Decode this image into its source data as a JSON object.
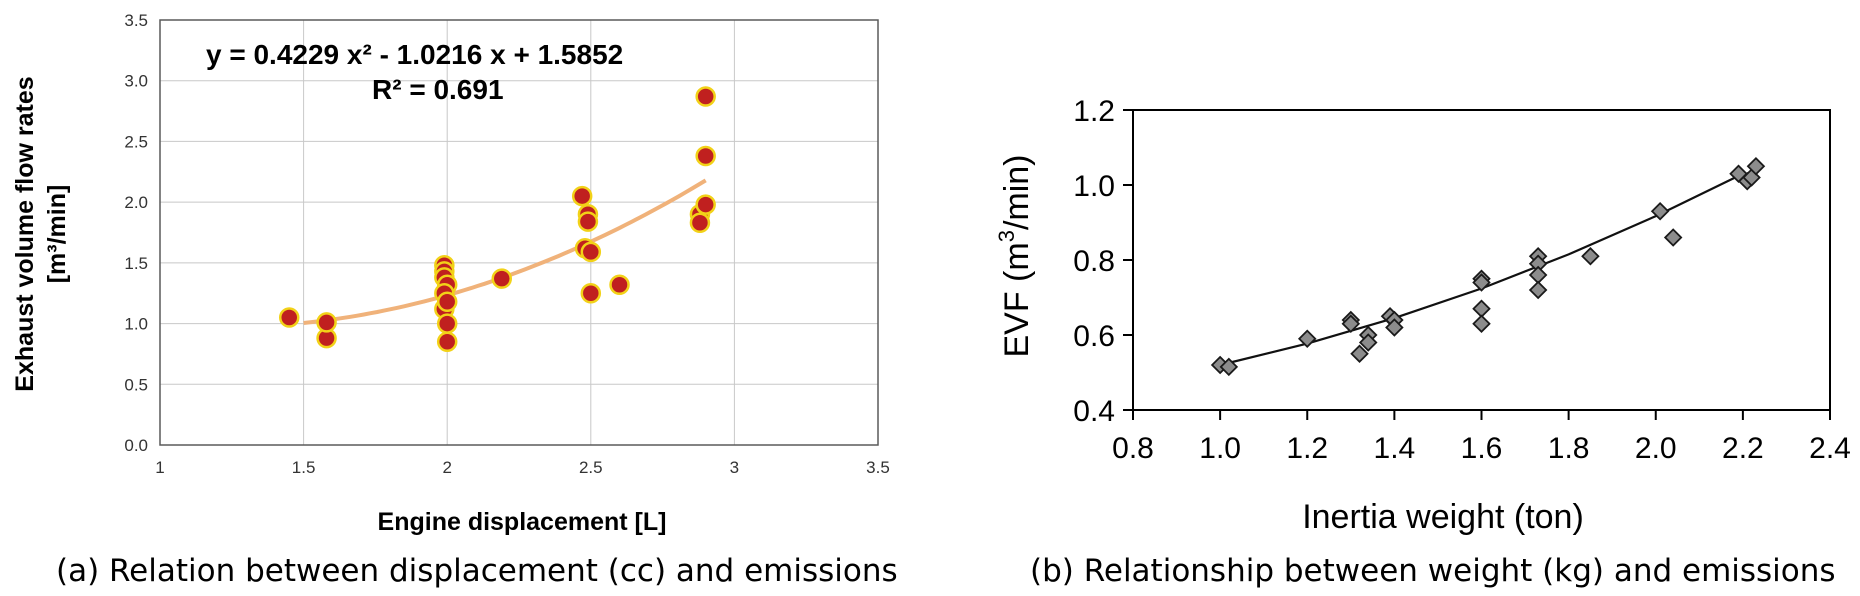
{
  "captions": {
    "a": "(a) Relation between displacement (cc) and emissions",
    "b": "(b) Relationship between weight (kg) and emissions"
  },
  "chart_data": [
    {
      "type": "scatter",
      "xlabel": "Engine displacement [L]",
      "ylabel_line1": "Exhaust volume flow rates",
      "ylabel_line2": "[m³/min]",
      "xlim": [
        1,
        3.5
      ],
      "ylim": [
        0.0,
        3.5
      ],
      "xticks": [
        "1",
        "1.5",
        "2",
        "2.5",
        "3",
        "3.5"
      ],
      "yticks": [
        "0.0",
        "0.5",
        "1.0",
        "1.5",
        "2.0",
        "2.5",
        "3.0",
        "3.5"
      ],
      "grid": true,
      "equation": "y = 0.4229 x² - 1.0216 x + 1.5852",
      "r_squared": "R² = 0.691",
      "trendline": {
        "a": 0.4229,
        "b": -1.0216,
        "c": 1.5852,
        "x_range": [
          1.5,
          2.9
        ]
      },
      "colors": {
        "marker_fill": "#c0201f",
        "marker_stroke": "#f2d218",
        "trendline": "#f0b27a",
        "grid": "#c8c8c8"
      },
      "points": [
        {
          "x": 1.45,
          "y": 1.05
        },
        {
          "x": 1.58,
          "y": 0.88
        },
        {
          "x": 1.58,
          "y": 1.01
        },
        {
          "x": 1.99,
          "y": 1.48
        },
        {
          "x": 1.99,
          "y": 1.43
        },
        {
          "x": 1.99,
          "y": 1.38
        },
        {
          "x": 2.0,
          "y": 1.32
        },
        {
          "x": 1.99,
          "y": 1.25
        },
        {
          "x": 1.99,
          "y": 1.12
        },
        {
          "x": 2.0,
          "y": 1.18
        },
        {
          "x": 2.0,
          "y": 1.0
        },
        {
          "x": 2.0,
          "y": 0.85
        },
        {
          "x": 2.19,
          "y": 1.37
        },
        {
          "x": 2.47,
          "y": 2.05
        },
        {
          "x": 2.48,
          "y": 1.62
        },
        {
          "x": 2.49,
          "y": 1.9
        },
        {
          "x": 2.49,
          "y": 1.84
        },
        {
          "x": 2.5,
          "y": 1.59
        },
        {
          "x": 2.5,
          "y": 1.25
        },
        {
          "x": 2.6,
          "y": 1.32
        },
        {
          "x": 2.88,
          "y": 1.9
        },
        {
          "x": 2.88,
          "y": 1.83
        },
        {
          "x": 2.9,
          "y": 2.87
        },
        {
          "x": 2.9,
          "y": 2.38
        },
        {
          "x": 2.9,
          "y": 1.98
        }
      ]
    },
    {
      "type": "scatter",
      "xlabel": "Inertia weight (ton)",
      "ylabel_text": "EVF (m",
      "ylabel_sup": "3",
      "ylabel_tail": "/min)",
      "xlim": [
        0.8,
        2.4
      ],
      "ylim": [
        0.4,
        1.2
      ],
      "xticks": [
        "0.8",
        "1.0",
        "1.2",
        "1.4",
        "1.6",
        "1.8",
        "2.0",
        "2.2",
        "2.4"
      ],
      "yticks": [
        "0.4",
        "0.6",
        "0.8",
        "1.0",
        "1.2"
      ],
      "grid": false,
      "trendline": {
        "x": [
          1.0,
          1.2,
          1.4,
          1.6,
          1.8,
          2.0,
          2.2
        ],
        "y": [
          0.52,
          0.577,
          0.645,
          0.724,
          0.815,
          0.917,
          1.03
        ]
      },
      "colors": {
        "marker_fill": "#8c8c8c",
        "marker_stroke": "#1a1a1a",
        "line": "#111111"
      },
      "points": [
        {
          "x": 1.0,
          "y": 0.52
        },
        {
          "x": 1.02,
          "y": 0.515
        },
        {
          "x": 1.2,
          "y": 0.59
        },
        {
          "x": 1.3,
          "y": 0.64
        },
        {
          "x": 1.3,
          "y": 0.63
        },
        {
          "x": 1.32,
          "y": 0.55
        },
        {
          "x": 1.34,
          "y": 0.6
        },
        {
          "x": 1.34,
          "y": 0.58
        },
        {
          "x": 1.39,
          "y": 0.65
        },
        {
          "x": 1.4,
          "y": 0.64
        },
        {
          "x": 1.4,
          "y": 0.62
        },
        {
          "x": 1.6,
          "y": 0.75
        },
        {
          "x": 1.6,
          "y": 0.74
        },
        {
          "x": 1.6,
          "y": 0.67
        },
        {
          "x": 1.6,
          "y": 0.63
        },
        {
          "x": 1.73,
          "y": 0.81
        },
        {
          "x": 1.73,
          "y": 0.79
        },
        {
          "x": 1.73,
          "y": 0.76
        },
        {
          "x": 1.73,
          "y": 0.72
        },
        {
          "x": 1.85,
          "y": 0.81
        },
        {
          "x": 2.01,
          "y": 0.93
        },
        {
          "x": 2.04,
          "y": 0.86
        },
        {
          "x": 2.19,
          "y": 1.03
        },
        {
          "x": 2.21,
          "y": 1.01
        },
        {
          "x": 2.22,
          "y": 1.02
        },
        {
          "x": 2.23,
          "y": 1.05
        }
      ]
    }
  ]
}
